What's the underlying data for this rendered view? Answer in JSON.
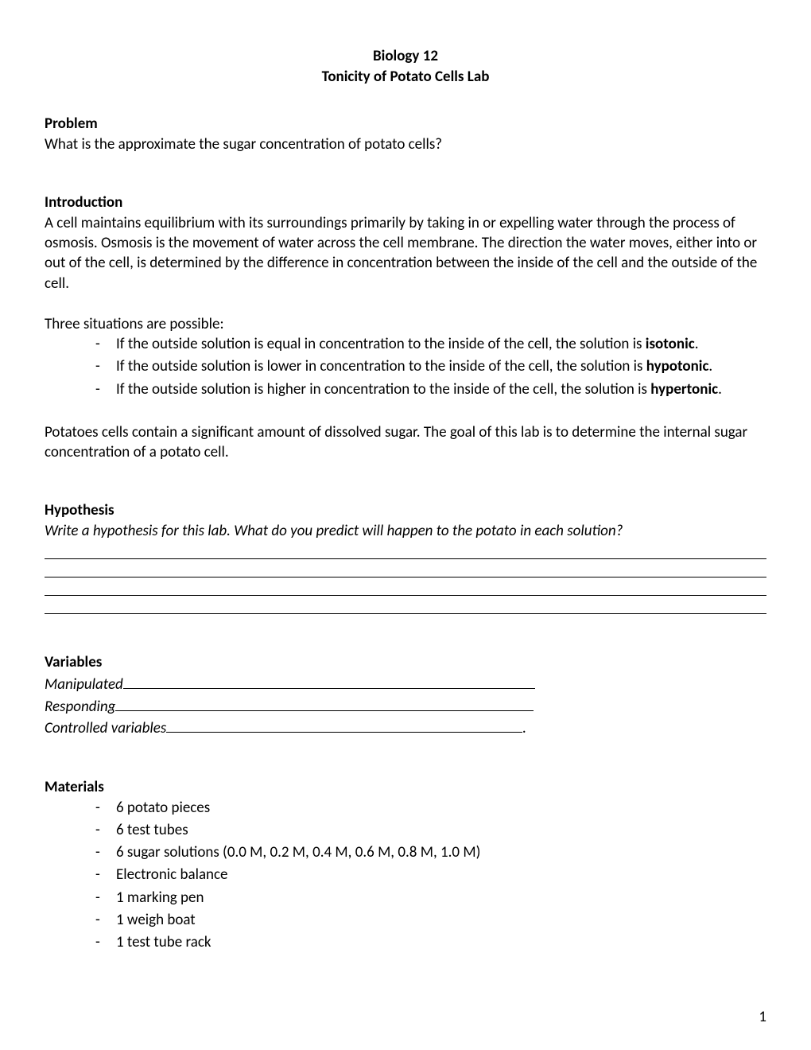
{
  "title": {
    "line1": "Biology 12",
    "line2": "Tonicity of Potato Cells Lab"
  },
  "problem": {
    "heading": "Problem",
    "text": "What is the approximate the sugar concentration of potato cells?"
  },
  "introduction": {
    "heading": "Introduction",
    "para1": "A cell maintains equilibrium with its surroundings primarily by taking in or expelling water through the process of osmosis.  Osmosis is the movement of water across the cell membrane.  The direction the water moves, either into or out of the cell, is determined by the difference in concentration between the inside of the cell and the outside of the cell.",
    "situations_intro": "Three situations are possible:",
    "bullets": [
      {
        "pre": "If the outside solution is equal in concentration to the inside of the cell, the solution is ",
        "term": "isotonic",
        "post": "."
      },
      {
        "pre": "If the outside solution is lower in concentration to the inside of the cell, the solution is ",
        "term": "hypotonic",
        "post": "."
      },
      {
        "pre": "If the outside solution is higher in concentration to the inside of the cell, the solution is ",
        "term": "hypertonic",
        "post": "."
      }
    ],
    "para2": "Potatoes cells contain a significant amount of dissolved sugar.  The goal of this lab is to determine the internal sugar concentration of a potato cell."
  },
  "hypothesis": {
    "heading": "Hypothesis",
    "prompt": "Write a hypothesis for this lab. What do you predict will happen to the potato in each solution?"
  },
  "variables": {
    "heading": "Variables",
    "rows": [
      {
        "label": "Manipulated",
        "underline_width": 518,
        "trailing": ""
      },
      {
        "label": "Responding",
        "underline_width": 526,
        "trailing": ""
      },
      {
        "label": "Controlled variables",
        "underline_width": 448,
        "trailing": "."
      }
    ]
  },
  "materials": {
    "heading": "Materials",
    "items": [
      "6 potato pieces",
      "6 test tubes",
      "6 sugar solutions (0.0 M, 0.2 M, 0.4 M, 0.6 M, 0.8 M, 1.0 M)",
      "Electronic balance",
      "1 marking pen",
      "1 weigh boat",
      "1 test tube rack"
    ]
  },
  "page_number": "1"
}
